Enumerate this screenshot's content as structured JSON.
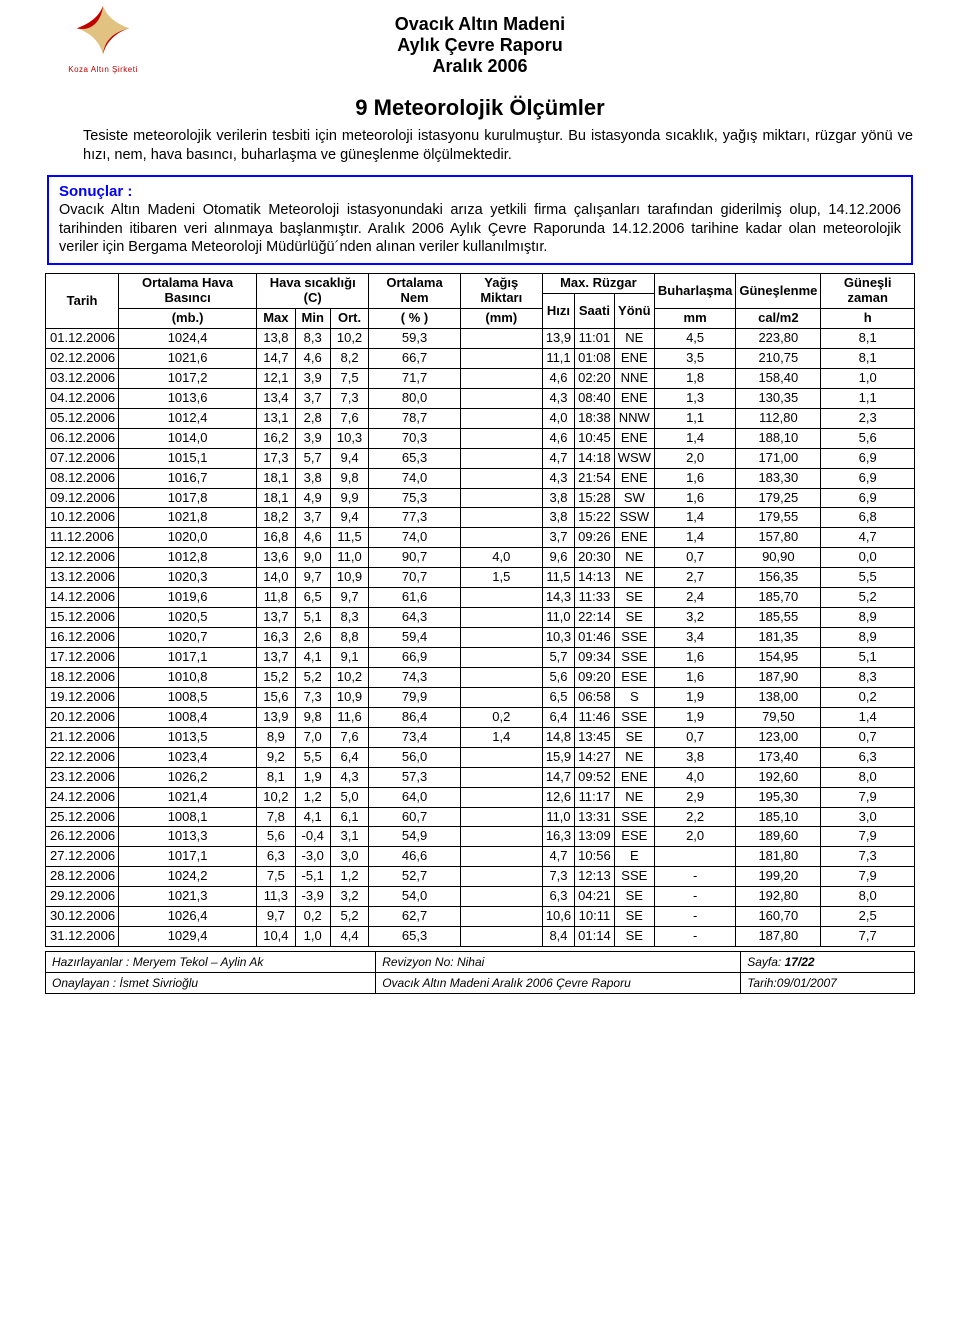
{
  "logo_caption": "Koza Altın Şirketi",
  "header": {
    "l1": "Ovacık Altın Madeni",
    "l2": "Aylık Çevre Raporu",
    "l3": "Aralık 2006"
  },
  "section_title": "9 Meteorolojik Ölçümler",
  "intro_indent": "Tesiste meteorolojik verilerin tesbiti için meteoroloji istasyonu kurulmuştur. Bu istasyonda sıcaklık, yağış miktarı, rüzgar yönü ve hızı, nem, hava basıncı, buharlaşma ve güneşlenme ölçülmektedir.",
  "results_label": "Sonuçlar :",
  "results_body": "Ovacık Altın Madeni Otomatik Meteoroloji istasyonundaki arıza yetkili firma çalışanları tarafından giderilmiş olup, 14.12.2006 tarihinden itibaren veri alınmaya başlanmıştır. Aralık 2006 Aylık Çevre Raporunda 14.12.2006 tarihine kadar olan meteorolojik veriler için Bergama Meteoroloji Müdürlüğü´nden alınan veriler kullanılmıştır.",
  "columns": {
    "tarih": "Tarih",
    "basinc": "Ortalama Hava Basıncı",
    "sicaklik": "Hava sıcaklığı (C)",
    "nem": "Ortalama Nem",
    "yagis": "Yağış Miktarı",
    "ruzgar": "Max. Rüzgar",
    "buhar": "Buharlaşma",
    "gunes": "Güneşlenme",
    "gzaman": "Güneşli zaman",
    "mb": "(mb.)",
    "max": "Max",
    "min": "Min",
    "ort": "Ort.",
    "pct": "( % )",
    "mm": "(mm)",
    "hizi": "Hızı",
    "saati": "Saati",
    "yonu": "Yönü",
    "mm2": "mm",
    "cal": "cal/m2",
    "h": "h"
  },
  "rows": [
    [
      "01.12.2006",
      "1024,4",
      "13,8",
      "8,3",
      "10,2",
      "59,3",
      "",
      "13,9",
      "11:01",
      "NE",
      "4,5",
      "223,80",
      "8,1"
    ],
    [
      "02.12.2006",
      "1021,6",
      "14,7",
      "4,6",
      "8,2",
      "66,7",
      "",
      "11,1",
      "01:08",
      "ENE",
      "3,5",
      "210,75",
      "8,1"
    ],
    [
      "03.12.2006",
      "1017,2",
      "12,1",
      "3,9",
      "7,5",
      "71,7",
      "",
      "4,6",
      "02:20",
      "NNE",
      "1,8",
      "158,40",
      "1,0"
    ],
    [
      "04.12.2006",
      "1013,6",
      "13,4",
      "3,7",
      "7,3",
      "80,0",
      "",
      "4,3",
      "08:40",
      "ENE",
      "1,3",
      "130,35",
      "1,1"
    ],
    [
      "05.12.2006",
      "1012,4",
      "13,1",
      "2,8",
      "7,6",
      "78,7",
      "",
      "4,0",
      "18:38",
      "NNW",
      "1,1",
      "112,80",
      "2,3"
    ],
    [
      "06.12.2006",
      "1014,0",
      "16,2",
      "3,9",
      "10,3",
      "70,3",
      "",
      "4,6",
      "10:45",
      "ENE",
      "1,4",
      "188,10",
      "5,6"
    ],
    [
      "07.12.2006",
      "1015,1",
      "17,3",
      "5,7",
      "9,4",
      "65,3",
      "",
      "4,7",
      "14:18",
      "WSW",
      "2,0",
      "171,00",
      "6,9"
    ],
    [
      "08.12.2006",
      "1016,7",
      "18,1",
      "3,8",
      "9,8",
      "74,0",
      "",
      "4,3",
      "21:54",
      "ENE",
      "1,6",
      "183,30",
      "6,9"
    ],
    [
      "09.12.2006",
      "1017,8",
      "18,1",
      "4,9",
      "9,9",
      "75,3",
      "",
      "3,8",
      "15:28",
      "SW",
      "1,6",
      "179,25",
      "6,9"
    ],
    [
      "10.12.2006",
      "1021,8",
      "18,2",
      "3,7",
      "9,4",
      "77,3",
      "",
      "3,8",
      "15:22",
      "SSW",
      "1,4",
      "179,55",
      "6,8"
    ],
    [
      "11.12.2006",
      "1020,0",
      "16,8",
      "4,6",
      "11,5",
      "74,0",
      "",
      "3,7",
      "09:26",
      "ENE",
      "1,4",
      "157,80",
      "4,7"
    ],
    [
      "12.12.2006",
      "1012,8",
      "13,6",
      "9,0",
      "11,0",
      "90,7",
      "4,0",
      "9,6",
      "20:30",
      "NE",
      "0,7",
      "90,90",
      "0,0"
    ],
    [
      "13.12.2006",
      "1020,3",
      "14,0",
      "9,7",
      "10,9",
      "70,7",
      "1,5",
      "11,5",
      "14:13",
      "NE",
      "2,7",
      "156,35",
      "5,5"
    ],
    [
      "14.12.2006",
      "1019,6",
      "11,8",
      "6,5",
      "9,7",
      "61,6",
      "",
      "14,3",
      "11:33",
      "SE",
      "2,4",
      "185,70",
      "5,2"
    ],
    [
      "15.12.2006",
      "1020,5",
      "13,7",
      "5,1",
      "8,3",
      "64,3",
      "",
      "11,0",
      "22:14",
      "SE",
      "3,2",
      "185,55",
      "8,9"
    ],
    [
      "16.12.2006",
      "1020,7",
      "16,3",
      "2,6",
      "8,8",
      "59,4",
      "",
      "10,3",
      "01:46",
      "SSE",
      "3,4",
      "181,35",
      "8,9"
    ],
    [
      "17.12.2006",
      "1017,1",
      "13,7",
      "4,1",
      "9,1",
      "66,9",
      "",
      "5,7",
      "09:34",
      "SSE",
      "1,6",
      "154,95",
      "5,1"
    ],
    [
      "18.12.2006",
      "1010,8",
      "15,2",
      "5,2",
      "10,2",
      "74,3",
      "",
      "5,6",
      "09:20",
      "ESE",
      "1,6",
      "187,90",
      "8,3"
    ],
    [
      "19.12.2006",
      "1008,5",
      "15,6",
      "7,3",
      "10,9",
      "79,9",
      "",
      "6,5",
      "06:58",
      "S",
      "1,9",
      "138,00",
      "0,2"
    ],
    [
      "20.12.2006",
      "1008,4",
      "13,9",
      "9,8",
      "11,6",
      "86,4",
      "0,2",
      "6,4",
      "11:46",
      "SSE",
      "1,9",
      "79,50",
      "1,4"
    ],
    [
      "21.12.2006",
      "1013,5",
      "8,9",
      "7,0",
      "7,6",
      "73,4",
      "1,4",
      "14,8",
      "13:45",
      "SE",
      "0,7",
      "123,00",
      "0,7"
    ],
    [
      "22.12.2006",
      "1023,4",
      "9,2",
      "5,5",
      "6,4",
      "56,0",
      "",
      "15,9",
      "14:27",
      "NE",
      "3,8",
      "173,40",
      "6,3"
    ],
    [
      "23.12.2006",
      "1026,2",
      "8,1",
      "1,9",
      "4,3",
      "57,3",
      "",
      "14,7",
      "09:52",
      "ENE",
      "4,0",
      "192,60",
      "8,0"
    ],
    [
      "24.12.2006",
      "1021,4",
      "10,2",
      "1,2",
      "5,0",
      "64,0",
      "",
      "12,6",
      "11:17",
      "NE",
      "2,9",
      "195,30",
      "7,9"
    ],
    [
      "25.12.2006",
      "1008,1",
      "7,8",
      "4,1",
      "6,1",
      "60,7",
      "",
      "11,0",
      "13:31",
      "SSE",
      "2,2",
      "185,10",
      "3,0"
    ],
    [
      "26.12.2006",
      "1013,3",
      "5,6",
      "-0,4",
      "3,1",
      "54,9",
      "",
      "16,3",
      "13:09",
      "ESE",
      "2,0",
      "189,60",
      "7,9"
    ],
    [
      "27.12.2006",
      "1017,1",
      "6,3",
      "-3,0",
      "3,0",
      "46,6",
      "",
      "4,7",
      "10:56",
      "E",
      "",
      "181,80",
      "7,3"
    ],
    [
      "28.12.2006",
      "1024,2",
      "7,5",
      "-5,1",
      "1,2",
      "52,7",
      "",
      "7,3",
      "12:13",
      "SSE",
      "-",
      "199,20",
      "7,9"
    ],
    [
      "29.12.2006",
      "1021,3",
      "11,3",
      "-3,9",
      "3,2",
      "54,0",
      "",
      "6,3",
      "04:21",
      "SE",
      "-",
      "192,80",
      "8,0"
    ],
    [
      "30.12.2006",
      "1026,4",
      "9,7",
      "0,2",
      "5,2",
      "62,7",
      "",
      "10,6",
      "10:11",
      "SE",
      "-",
      "160,70",
      "2,5"
    ],
    [
      "31.12.2006",
      "1029,4",
      "10,4",
      "1,0",
      "4,4",
      "65,3",
      "",
      "8,4",
      "01:14",
      "SE",
      "-",
      "187,80",
      "7,7"
    ]
  ],
  "footer": {
    "prep_label": "Hazırlayanlar :",
    "prep_names": "Meryem Tekol – Aylin Ak",
    "rev_label": "Revizyon No:",
    "rev_val": "Nihai",
    "page_label": "Sayfa:",
    "page_val": "17/22",
    "approve_label": "Onaylayan :",
    "approve_name": "İsmet Sivrioğlu",
    "doc_title": "Ovacık Altın Madeni Aralık 2006 Çevre Raporu",
    "date_label": "Tarih:",
    "date_val": "09/01/2007"
  }
}
